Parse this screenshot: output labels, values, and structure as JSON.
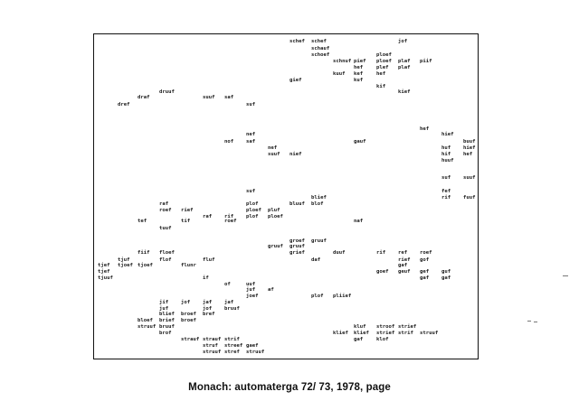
{
  "caption": "Monach: automaterga 72/ 73, 1978, page",
  "words": [
    "schef",
    "schauf",
    "schef",
    "schoef",
    "jof",
    "schnuf",
    "ploef",
    "pief",
    "ploef",
    "plaf",
    "piif",
    "hef",
    "plef",
    "plaf",
    "kuuf",
    "kef",
    "hef",
    "kuf",
    "gief",
    "kif",
    "kief",
    "druuf",
    "draf",
    "suuf",
    "saf",
    "dref",
    "suf",
    "hef",
    "hief",
    "nef",
    "nof",
    "saf",
    "gauf",
    "buuf",
    "nef",
    "huf",
    "hief",
    "suuf",
    "nief",
    "hif",
    "hef",
    "huuf",
    "suf",
    "suuf",
    "suf",
    "fef",
    "blief",
    "rif",
    "fuuf",
    "raf",
    "plof",
    "bluuf",
    "blof",
    "roef",
    "rief",
    "ploef",
    "pluf",
    "raf",
    "rif",
    "plof",
    "ploef",
    "tef",
    "tif",
    "roef",
    "naf",
    "tuuf",
    "groef",
    "gruuf",
    "gruuf",
    "gruuf",
    "grief",
    "fiif",
    "floef",
    "tjuf",
    "flof",
    "fluf",
    "daf",
    "duuf",
    "rif",
    "ref",
    "roef",
    "tjef",
    "tjoef",
    "tjoef",
    "flunr",
    "rief",
    "gof",
    "tjef",
    "gaf",
    "goef",
    "geuf",
    "gef",
    "guf",
    "tjuuf",
    "if",
    "gaf",
    "gaf",
    "of",
    "uuf",
    "juf",
    "af",
    "joef",
    "plof",
    "pliief",
    "jif",
    "jof",
    "jaf",
    "jaf",
    "juf",
    "jof",
    "bruuf",
    "blief",
    "broef",
    "bref",
    "bloef",
    "brief",
    "broef",
    "struuf",
    "bruuf",
    "kluf",
    "stroof",
    "strief",
    "strief",
    "brof",
    "klief",
    "klief",
    "strauf",
    "strauf",
    "strif",
    "struuf",
    "strif",
    "gaf",
    "klof",
    "struf",
    "streef",
    "gaef",
    "struuf",
    "stref",
    "struuf",
    "gof"
  ]
}
